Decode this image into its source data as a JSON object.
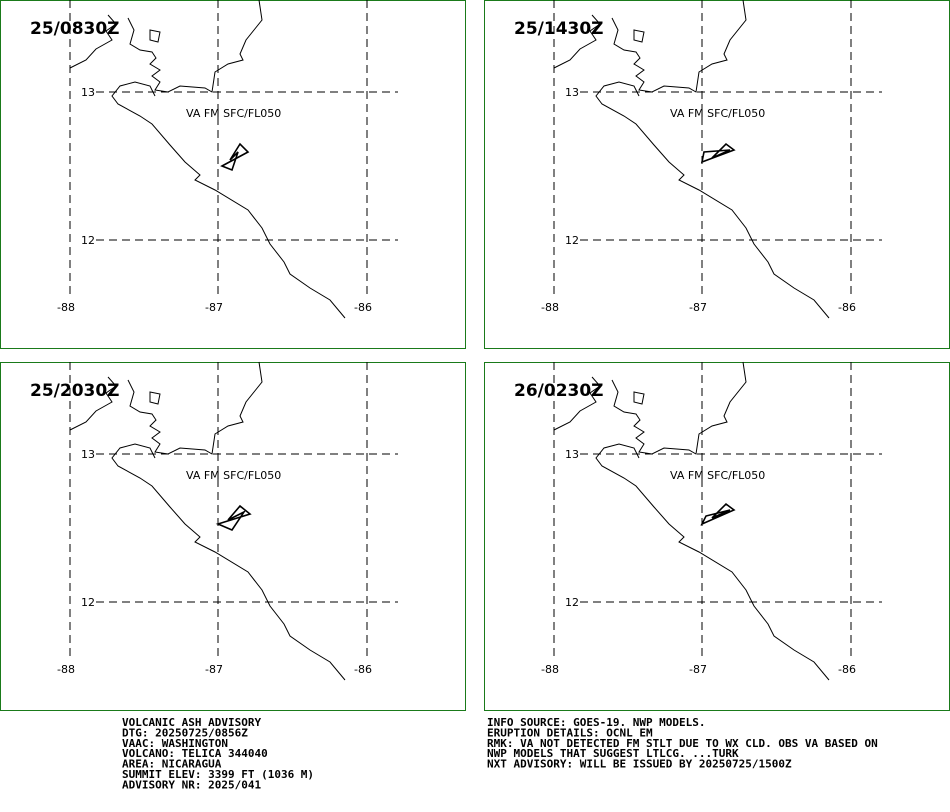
{
  "panels": [
    {
      "time": "25/0830Z",
      "layer": "VA FM SFC/FL050"
    },
    {
      "time": "25/1430Z",
      "layer": "VA FM SFC/FL050"
    },
    {
      "time": "25/2030Z",
      "layer": "VA FM SFC/FL050"
    },
    {
      "time": "26/0230Z",
      "layer": "VA FM SFC/FL050"
    }
  ],
  "grid": {
    "lat": [
      "13",
      "12"
    ],
    "lon": [
      "-88",
      "-87",
      "-86"
    ]
  },
  "advisory_left": [
    "VOLCANIC ASH ADVISORY",
    "DTG: 20250725/0856Z",
    "VAAC: WASHINGTON",
    "VOLCANO: TELICA 344040",
    "AREA: NICARAGUA",
    "SUMMIT ELEV: 3399 FT (1036 M)",
    "ADVISORY NR: 2025/041"
  ],
  "advisory_right": [
    "INFO SOURCE: GOES-19. NWP MODELS.",
    "ERUPTION DETAILS: OCNL EM",
    "RMK: VA NOT DETECTED FM STLT DUE TO WX CLD. OBS VA BASED ON",
    "NWP MODELS THAT SUGGEST LTLCG. ...TURK",
    "NXT ADVISORY: WILL BE ISSUED BY 20250725/1500Z"
  ]
}
